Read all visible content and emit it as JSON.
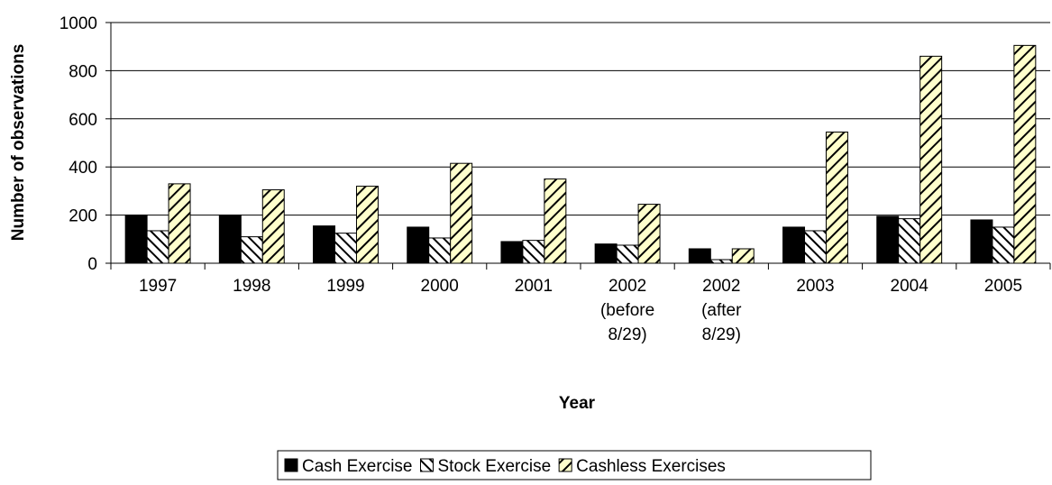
{
  "chart_data": {
    "type": "bar",
    "y_label": "Number of observations",
    "x_label": "Year",
    "categories": [
      "1997",
      "1998",
      "1999",
      "2000",
      "2001",
      "2002\n(before\n8/29)",
      "2002\n(after\n8/29)",
      "2003",
      "2004",
      "2005"
    ],
    "series": [
      {
        "name": "Cash Exercise",
        "color": "#000000",
        "hatch": "none",
        "values": [
          200,
          200,
          155,
          150,
          90,
          80,
          60,
          150,
          195,
          180
        ]
      },
      {
        "name": "Stock Exercise",
        "color": "#ffffff",
        "hatch": "back-diagonal",
        "values": [
          135,
          110,
          125,
          105,
          95,
          75,
          15,
          135,
          185,
          150
        ]
      },
      {
        "name": "Cashless Exercises",
        "color": "#ffffcc",
        "hatch": "diagonal",
        "values": [
          330,
          305,
          320,
          415,
          350,
          245,
          60,
          545,
          860,
          905
        ]
      }
    ],
    "ylim": [
      0,
      1000
    ],
    "yticks": [
      0,
      200,
      400,
      600,
      800,
      1000
    ],
    "grid": true,
    "legend": "bottom"
  }
}
